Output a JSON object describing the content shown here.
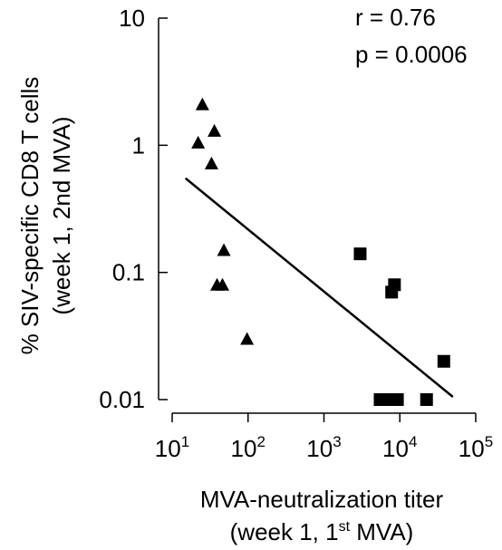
{
  "chart_data": {
    "type": "scatter",
    "xscale": "log",
    "yscale": "log",
    "xlim": [
      10,
      100000
    ],
    "ylim": [
      0.01,
      10
    ],
    "xlabel_line1": "MVA-neutralization titer",
    "xlabel_line2": "(week 1, 1st MVA)",
    "ylabel_line1": "% SIV-specific CD8 T cells",
    "ylabel_line2": "(week 1, 2nd MVA)",
    "x_ticks": [
      {
        "value": 10,
        "base": "10",
        "exp": "1"
      },
      {
        "value": 100,
        "base": "10",
        "exp": "2"
      },
      {
        "value": 1000,
        "base": "10",
        "exp": "3"
      },
      {
        "value": 10000,
        "base": "10",
        "exp": "4"
      },
      {
        "value": 100000,
        "base": "10",
        "exp": "5"
      }
    ],
    "y_ticks": [
      {
        "value": 10,
        "label": "10"
      },
      {
        "value": 1,
        "label": "1"
      },
      {
        "value": 0.1,
        "label": "0.1"
      },
      {
        "value": 0.01,
        "label": "0.01"
      }
    ],
    "annotations": {
      "r": "r  = 0.76",
      "p": "p = 0.0006"
    },
    "series": [
      {
        "marker": "triangle",
        "points": [
          {
            "x": 25,
            "y": 2.1
          },
          {
            "x": 22,
            "y": 1.05
          },
          {
            "x": 36,
            "y": 1.3
          },
          {
            "x": 33,
            "y": 0.72
          },
          {
            "x": 48,
            "y": 0.15
          },
          {
            "x": 39,
            "y": 0.08
          },
          {
            "x": 46,
            "y": 0.08
          },
          {
            "x": 97,
            "y": 0.03
          }
        ]
      },
      {
        "marker": "square",
        "points": [
          {
            "x": 3000,
            "y": 0.14
          },
          {
            "x": 8500,
            "y": 0.08
          },
          {
            "x": 7800,
            "y": 0.07
          },
          {
            "x": 38000,
            "y": 0.02
          },
          {
            "x": 5500,
            "y": 0.01
          },
          {
            "x": 6700,
            "y": 0.01
          },
          {
            "x": 7800,
            "y": 0.01
          },
          {
            "x": 9300,
            "y": 0.01
          },
          {
            "x": 22500,
            "y": 0.01
          }
        ]
      }
    ],
    "regression_line": {
      "x": [
        15,
        50000
      ],
      "y": [
        0.55,
        0.0105
      ]
    }
  }
}
